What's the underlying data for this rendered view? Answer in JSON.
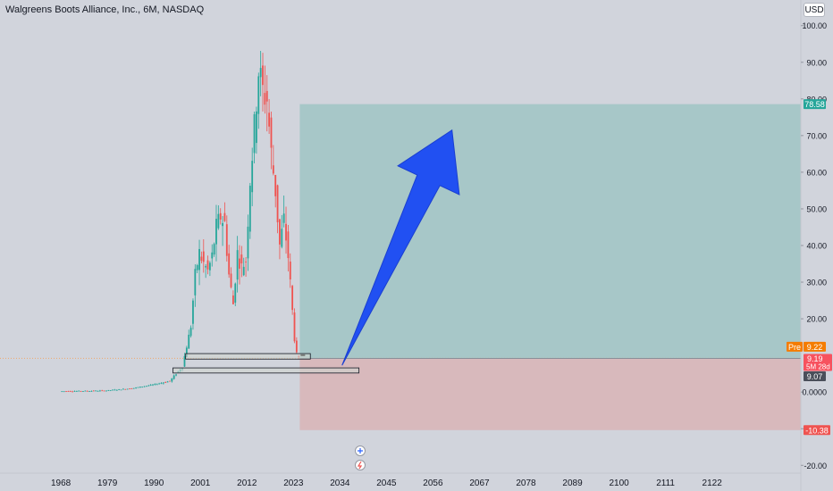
{
  "header": {
    "title": "Walgreens Boots Alliance, Inc., 6M, NASDAQ",
    "currency": "USD"
  },
  "price_tags": {
    "target": "78.58",
    "pre_label": "Pre",
    "pre_value": "9.22",
    "last_value": "9.19",
    "countdown": "5M 28d",
    "low_value": "9.07",
    "stop_value": "-10.38"
  },
  "colors": {
    "background": "#d1d4dc",
    "up": "#26a69a",
    "down": "#ef5350",
    "profit_zone": "#a7c7c8",
    "loss_zone": "#d8b9bc",
    "arrow": "#2150f2",
    "pre_tag": "#f57c00"
  },
  "icons": [
    "plus-circle-icon",
    "lightning-icon"
  ],
  "chart_data": {
    "type": "candlestick",
    "title": "Walgreens Boots Alliance, Inc., 6M, NASDAQ",
    "y_ticks": [
      100,
      90,
      80,
      70,
      60,
      50,
      40,
      30,
      20,
      0,
      -10,
      -20
    ],
    "y_tick_labels": [
      "100.00",
      "90.00",
      "80.00",
      "70.00",
      "60.00",
      "50.00",
      "40.00",
      "30.00",
      "20.00",
      "0.0000",
      "-10.00",
      "-20.00"
    ],
    "ylim": [
      -27,
      107
    ],
    "x_tick_labels": [
      "1968",
      "1979",
      "1990",
      "2001",
      "2012",
      "2023",
      "2034",
      "2045",
      "2056",
      "2067",
      "2078",
      "2089",
      "2100",
      "2111",
      "2122"
    ],
    "x_ticks": [
      1968,
      1979,
      1990,
      2001,
      2012,
      2023,
      2034,
      2045,
      2056,
      2067,
      2078,
      2089,
      2100,
      2111,
      2122
    ],
    "xlim": [
      1953.6,
      2143
    ],
    "price_path": [
      [
        1968,
        0.2
      ],
      [
        1975,
        0.3
      ],
      [
        1979,
        0.4
      ],
      [
        1985,
        1.0
      ],
      [
        1990,
        2.0
      ],
      [
        1994,
        3.0
      ],
      [
        1997,
        7.0
      ],
      [
        1999,
        18.0
      ],
      [
        2000,
        32.0
      ],
      [
        2001,
        38.0
      ],
      [
        2002,
        35.0
      ],
      [
        2003,
        33.0
      ],
      [
        2004,
        37.0
      ],
      [
        2005,
        45.0
      ],
      [
        2006,
        48.0
      ],
      [
        2007,
        46.0
      ],
      [
        2008,
        32.0
      ],
      [
        2009,
        24.0
      ],
      [
        2010,
        38.0
      ],
      [
        2011,
        34.0
      ],
      [
        2012,
        36.0
      ],
      [
        2013,
        58.0
      ],
      [
        2014,
        72.0
      ],
      [
        2015,
        88.0
      ],
      [
        2016,
        82.0
      ],
      [
        2017,
        80.0
      ],
      [
        2018,
        65.0
      ],
      [
        2019,
        55.0
      ],
      [
        2020,
        40.0
      ],
      [
        2021,
        47.0
      ],
      [
        2022,
        37.0
      ],
      [
        2023,
        22.0
      ],
      [
        2023.8,
        10.5
      ],
      [
        2024.5,
        9.19
      ]
    ],
    "position": {
      "type": "long",
      "start_x": 2024.5,
      "end_x": 2143,
      "entry": 9.19,
      "target": 78.58,
      "stop": -10.38
    },
    "support_boxes": [
      {
        "x0": 1997.5,
        "x1": 2027,
        "y0": 9.0,
        "y1": 10.5
      },
      {
        "x0": 1994.5,
        "x1": 2038.5,
        "y0": 5.2,
        "y1": 6.6
      }
    ],
    "arrow": {
      "from": [
        2034.5,
        7.3
      ],
      "to": [
        2060.5,
        71.5
      ]
    },
    "grid": false,
    "legend": "none"
  }
}
